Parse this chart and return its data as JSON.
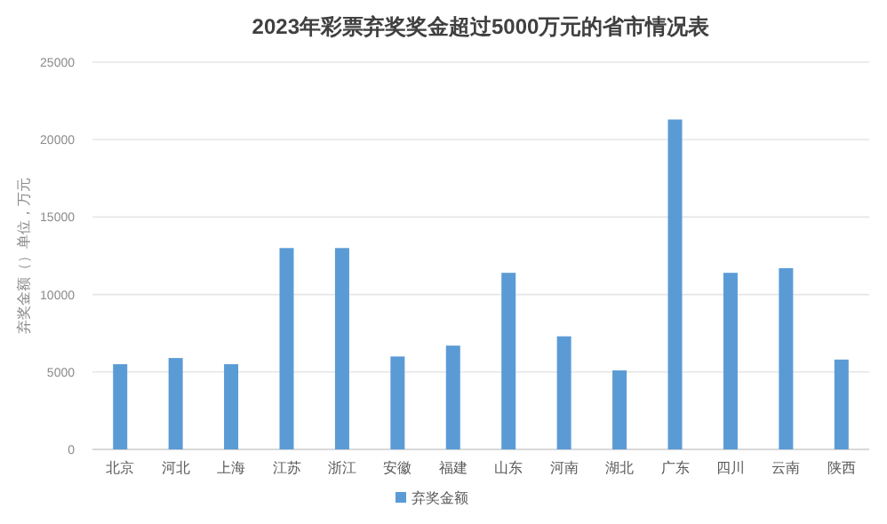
{
  "chart_data": {
    "type": "bar",
    "title": "2023年彩票弃奖奖金超过5000万元的省市情况表",
    "ylabel": "弃奖金额（）单位，万元",
    "categories": [
      "北京",
      "河北",
      "上海",
      "江苏",
      "浙江",
      "安徽",
      "福建",
      "山东",
      "河南",
      "湖北",
      "广东",
      "四川",
      "云南",
      "陕西"
    ],
    "series": [
      {
        "name": "弃奖金额",
        "color": "#5b9bd5",
        "values": [
          5500,
          5900,
          5500,
          13000,
          13000,
          6000,
          6700,
          11400,
          7300,
          5100,
          21300,
          11400,
          11700,
          5800
        ]
      }
    ],
    "ylim": [
      0,
      25000
    ],
    "yticks": [
      0,
      5000,
      10000,
      15000,
      20000,
      25000
    ],
    "grid": "y",
    "legend": "bottom"
  }
}
